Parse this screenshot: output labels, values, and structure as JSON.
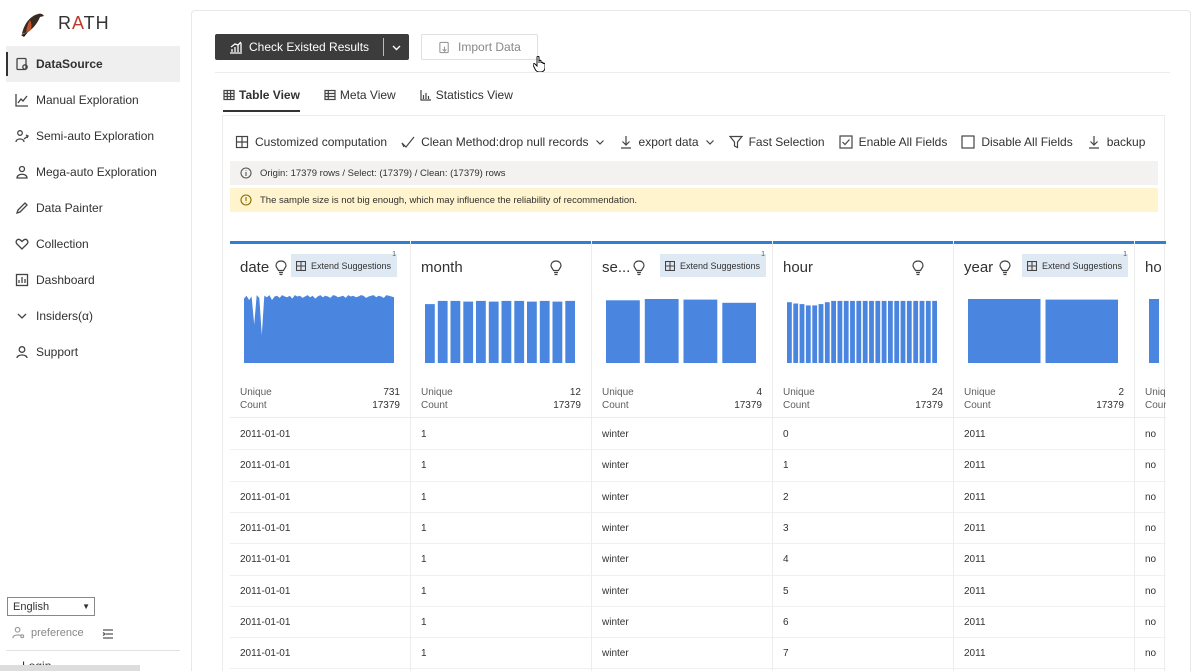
{
  "app": {
    "name_prefix": "R",
    "name_accent": "A",
    "name_suffix": "TH"
  },
  "sidebar": {
    "items": [
      {
        "label": "DataSource",
        "icon": "database-icon",
        "active": true
      },
      {
        "label": "Manual Exploration",
        "icon": "line-chart-icon"
      },
      {
        "label": "Semi-auto Exploration",
        "icon": "people-icon"
      },
      {
        "label": "Mega-auto Exploration",
        "icon": "robot-icon"
      },
      {
        "label": "Data Painter",
        "icon": "pencil-icon"
      },
      {
        "label": "Collection",
        "icon": "heart-icon"
      },
      {
        "label": "Dashboard",
        "icon": "dashboard-icon"
      },
      {
        "label": "Insiders(α)",
        "icon": "chevron-down-icon"
      },
      {
        "label": "Support",
        "icon": "support-icon"
      }
    ],
    "language": "English",
    "preference": "preference",
    "login": "Login"
  },
  "topbar": {
    "check_label": "Check Existed Results",
    "import_label": "Import Data"
  },
  "tabs": [
    {
      "label": "Table View",
      "active": true
    },
    {
      "label": "Meta View"
    },
    {
      "label": "Statistics View"
    }
  ],
  "toolbar": {
    "customized": "Customized computation",
    "clean": "Clean Method:drop null records",
    "export": "export data",
    "fast": "Fast Selection",
    "enable_all": "Enable All Fields",
    "disable_all": "Disable All Fields",
    "backup": "backup"
  },
  "info": {
    "origin": "Origin: 17379 rows / Select: (17379) / Clean: (17379) rows",
    "warning": "The sample size is not big enough, which may influence the reliability of recommendation."
  },
  "colors": {
    "accent": "#2f7fd8",
    "bar": "#4a86e0",
    "primary_btn": "#3c3c3c",
    "warn_bg": "#fff4ce"
  },
  "table": {
    "ext_label": "Extend Suggestions",
    "ext_badge": "1",
    "unique_label": "Unique",
    "count_label": "Count",
    "columns": [
      {
        "name": "date",
        "unique": "731",
        "count": "17379",
        "ext": true
      },
      {
        "name": "month",
        "unique": "12",
        "count": "17379",
        "ext": false
      },
      {
        "name": "se...",
        "unique": "4",
        "count": "17379",
        "ext": true
      },
      {
        "name": "hour",
        "unique": "24",
        "count": "17379",
        "ext": false
      },
      {
        "name": "year",
        "unique": "2",
        "count": "17379",
        "ext": true
      },
      {
        "name": "ho",
        "unique": "",
        "count": "",
        "ext": false
      }
    ],
    "rows": [
      [
        "2011-01-01",
        "1",
        "winter",
        "0",
        "2011",
        "no"
      ],
      [
        "2011-01-01",
        "1",
        "winter",
        "1",
        "2011",
        "no"
      ],
      [
        "2011-01-01",
        "1",
        "winter",
        "2",
        "2011",
        "no"
      ],
      [
        "2011-01-01",
        "1",
        "winter",
        "3",
        "2011",
        "no"
      ],
      [
        "2011-01-01",
        "1",
        "winter",
        "4",
        "2011",
        "no"
      ],
      [
        "2011-01-01",
        "1",
        "winter",
        "5",
        "2011",
        "no"
      ],
      [
        "2011-01-01",
        "1",
        "winter",
        "6",
        "2011",
        "no"
      ],
      [
        "2011-01-01",
        "1",
        "winter",
        "7",
        "2011",
        "no"
      ]
    ]
  },
  "chart_data": [
    {
      "type": "area",
      "field": "date",
      "values": [
        0.92,
        0.96,
        0.9,
        0.95,
        0.55,
        0.97,
        0.93,
        0.4,
        0.96,
        0.94,
        0.97,
        0.9,
        0.95,
        0.96,
        0.93,
        0.97,
        0.95,
        0.94,
        0.96,
        0.92,
        0.97,
        0.95,
        0.96,
        0.93,
        0.95,
        0.97,
        0.94,
        0.96,
        0.92,
        0.95,
        0.97,
        0.94,
        0.96,
        0.95,
        0.93,
        0.97,
        0.96,
        0.94,
        0.95,
        0.96,
        0.93,
        0.97,
        0.95,
        0.96,
        0.94,
        0.95,
        0.97,
        0.96,
        0.93,
        0.95,
        0.96,
        0.97,
        0.94,
        0.96,
        0.95,
        0.93,
        0.97,
        0.96,
        0.95,
        0.94
      ]
    },
    {
      "type": "bar",
      "field": "month",
      "values": [
        0.92,
        0.97,
        0.97,
        0.96,
        0.97,
        0.96,
        0.97,
        0.97,
        0.96,
        0.97,
        0.96,
        0.97
      ]
    },
    {
      "type": "bar",
      "field": "season",
      "values": [
        0.98,
        1.0,
        0.99,
        0.94
      ]
    },
    {
      "type": "bar",
      "field": "hour",
      "values": [
        0.95,
        0.93,
        0.92,
        0.9,
        0.9,
        0.92,
        0.95,
        0.97,
        0.97,
        0.97,
        0.97,
        0.97,
        0.97,
        0.97,
        0.97,
        0.97,
        0.97,
        0.97,
        0.97,
        0.97,
        0.97,
        0.97,
        0.97,
        0.97
      ]
    },
    {
      "type": "bar",
      "field": "year",
      "values": [
        1.0,
        0.99
      ]
    },
    {
      "type": "bar",
      "field": "ho",
      "values": [
        1.0
      ]
    }
  ]
}
